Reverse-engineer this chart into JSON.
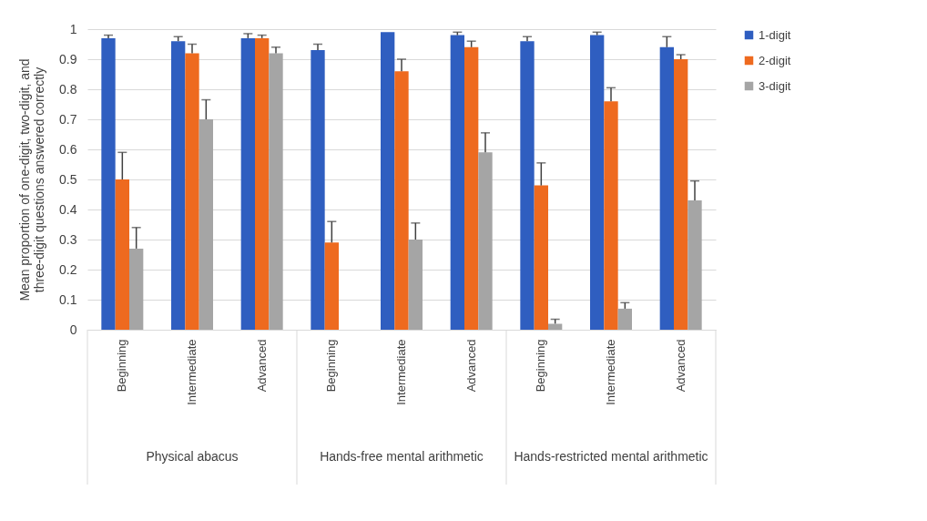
{
  "chart_data": {
    "type": "bar",
    "ylabel": "Mean proportion of one-digit, two-digit, and three-digit questions answered correctly",
    "categories": [
      "Beginning",
      "Intermediate",
      "Advanced",
      "Beginning",
      "Intermediate",
      "Advanced",
      "Beginning",
      "Intermediate",
      "Advanced"
    ],
    "annotations": [
      "Physical abacus",
      "Hands-free mental arithmetic",
      "Hands-restricted mental arithmetic"
    ],
    "series": [
      {
        "name": "1-digit",
        "color": "#2f5ec0",
        "values": [
          0.97,
          0.96,
          0.97,
          0.93,
          0.99,
          0.98,
          0.96,
          0.98,
          0.94
        ],
        "errors": [
          [
            0.97,
            0.98
          ],
          [
            0.96,
            0.975
          ],
          [
            0.97,
            0.985
          ],
          [
            0.93,
            0.95
          ],
          null,
          [
            0.98,
            0.99
          ],
          [
            0.96,
            0.975
          ],
          [
            0.98,
            0.99
          ],
          [
            0.94,
            0.975
          ]
        ]
      },
      {
        "name": "2-digit",
        "color": "#ee6a1f",
        "values": [
          0.5,
          0.92,
          0.97,
          0.29,
          0.86,
          0.94,
          0.48,
          0.76,
          0.9
        ],
        "errors": [
          [
            0.5,
            0.59
          ],
          [
            0.92,
            0.95
          ],
          [
            0.97,
            0.98
          ],
          [
            0.29,
            0.36
          ],
          [
            0.86,
            0.9
          ],
          [
            0.94,
            0.96
          ],
          [
            0.48,
            0.555
          ],
          [
            0.76,
            0.805
          ],
          [
            0.9,
            0.915
          ]
        ]
      },
      {
        "name": "3-digit",
        "color": "#a5a5a5",
        "values": [
          0.27,
          0.7,
          0.92,
          0,
          0.3,
          0.59,
          0.02,
          0.07,
          0.43
        ],
        "errors": [
          [
            0.27,
            0.34
          ],
          [
            0.7,
            0.765
          ],
          [
            0.92,
            0.94
          ],
          null,
          [
            0.3,
            0.355
          ],
          [
            0.59,
            0.655
          ],
          [
            0.02,
            0.035
          ],
          [
            0.07,
            0.09
          ],
          [
            0.43,
            0.495
          ]
        ]
      }
    ],
    "ylim": [
      0,
      1
    ],
    "yticks": [
      0,
      0.1,
      0.2,
      0.3,
      0.4,
      0.5,
      0.6,
      0.7,
      0.8,
      0.9,
      1
    ],
    "grid": "y",
    "legend": "right"
  }
}
